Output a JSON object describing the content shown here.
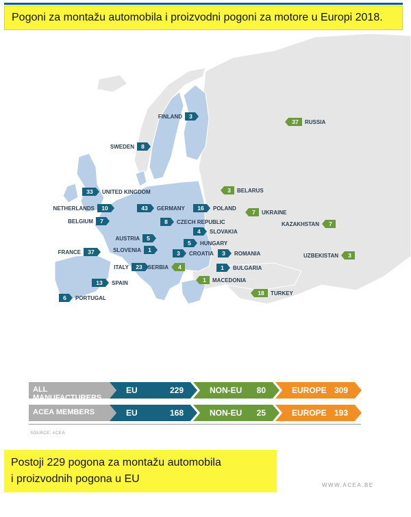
{
  "title": "Pogoni za montažu automobila i proizvodni pogoni za motore u Europi 2018.",
  "colors": {
    "eu": "#17627f",
    "non_eu": "#6a9a39",
    "europe": "#f18f27",
    "eu_land": "#b9cfe8",
    "other_land": "#e6e6e6"
  },
  "map": {
    "countries": [
      {
        "name": "FINLAND",
        "value": "3",
        "group": "eu"
      },
      {
        "name": "SWEDEN",
        "value": "8",
        "group": "eu"
      },
      {
        "name": "RUSSIA",
        "value": "37",
        "group": "non-eu"
      },
      {
        "name": "UNITED KINGDOM",
        "value": "33",
        "group": "eu"
      },
      {
        "name": "BELARUS",
        "value": "3",
        "group": "non-eu"
      },
      {
        "name": "NETHERLANDS",
        "value": "10",
        "group": "eu"
      },
      {
        "name": "GERMANY",
        "value": "43",
        "group": "eu"
      },
      {
        "name": "POLAND",
        "value": "16",
        "group": "eu"
      },
      {
        "name": "UKRAINE",
        "value": "7",
        "group": "non-eu"
      },
      {
        "name": "BELGIUM",
        "value": "7",
        "group": "eu"
      },
      {
        "name": "CZECH REPUBLIC",
        "value": "8",
        "group": "eu"
      },
      {
        "name": "KAZAKHSTAN",
        "value": "7",
        "group": "non-eu"
      },
      {
        "name": "SLOVAKIA",
        "value": "4",
        "group": "eu"
      },
      {
        "name": "AUSTRIA",
        "value": "5",
        "group": "eu"
      },
      {
        "name": "HUNGARY",
        "value": "5",
        "group": "eu"
      },
      {
        "name": "FRANCE",
        "value": "37",
        "group": "eu"
      },
      {
        "name": "SLOVENIA",
        "value": "1",
        "group": "eu"
      },
      {
        "name": "CROATIA",
        "value": "3",
        "group": "eu"
      },
      {
        "name": "ROMANIA",
        "value": "3",
        "group": "eu"
      },
      {
        "name": "UZBEKISTAN",
        "value": "3",
        "group": "non-eu"
      },
      {
        "name": "ITALY",
        "value": "23",
        "group": "eu"
      },
      {
        "name": "SERBIA",
        "value": "4",
        "group": "non-eu"
      },
      {
        "name": "BULGARIA",
        "value": "1",
        "group": "eu"
      },
      {
        "name": "MACEDONIA",
        "value": "1",
        "group": "non-eu"
      },
      {
        "name": "SPAIN",
        "value": "13",
        "group": "eu"
      },
      {
        "name": "TURKEY",
        "value": "18",
        "group": "non-eu"
      },
      {
        "name": "PORTUGAL",
        "value": "6",
        "group": "eu"
      }
    ]
  },
  "summary": {
    "rows": [
      {
        "label": "ALL MANUFACTURERS",
        "eu_label": "EU",
        "eu_value": "229",
        "noneu_label": "NON-EU",
        "noneu_value": "80",
        "europe_label": "EUROPE",
        "europe_value": "309"
      },
      {
        "label": "ACEA MEMBERS",
        "eu_label": "EU",
        "eu_value": "168",
        "noneu_label": "NON-EU",
        "noneu_value": "25",
        "europe_label": "EUROPE",
        "europe_value": "193"
      }
    ],
    "source": "SOURCE: ACEA"
  },
  "footer": {
    "line1": "Postoji 229 pogona za montažu automobila",
    "line2": "i proizvodnih pogona u EU",
    "site": "WWW.ACEA.BE"
  }
}
